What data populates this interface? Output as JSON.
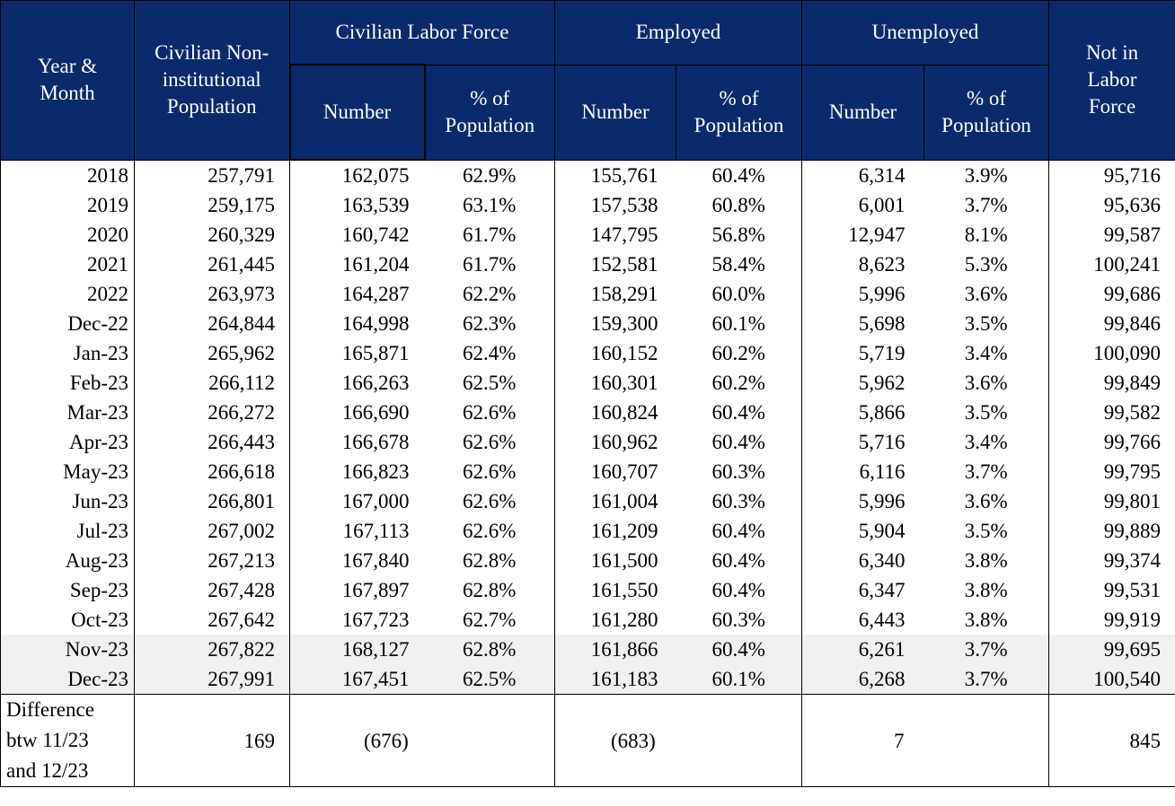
{
  "header": {
    "year_month": "Year & Month",
    "population": "Civilian Non-institutional Population",
    "groups": [
      {
        "label": "Civilian Labor Force",
        "number": "Number",
        "percent": "% of Population"
      },
      {
        "label": "Employed",
        "number": "Number",
        "percent": "% of Population"
      },
      {
        "label": "Unemployed",
        "number": "Number",
        "percent": "% of Population"
      }
    ],
    "not_in_labor_force": "Not in Labor Force"
  },
  "rows": [
    [
      "2018",
      "257,791",
      "162,075",
      "62.9%",
      "155,761",
      "60.4%",
      "6,314",
      "3.9%",
      "95,716"
    ],
    [
      "2019",
      "259,175",
      "163,539",
      "63.1%",
      "157,538",
      "60.8%",
      "6,001",
      "3.7%",
      "95,636"
    ],
    [
      "2020",
      "260,329",
      "160,742",
      "61.7%",
      "147,795",
      "56.8%",
      "12,947",
      "8.1%",
      "99,587"
    ],
    [
      "2021",
      "261,445",
      "161,204",
      "61.7%",
      "152,581",
      "58.4%",
      "8,623",
      "5.3%",
      "100,241"
    ],
    [
      "2022",
      "263,973",
      "164,287",
      "62.2%",
      "158,291",
      "60.0%",
      "5,996",
      "3.6%",
      "99,686"
    ],
    [
      "Dec-22",
      "264,844",
      "164,998",
      "62.3%",
      "159,300",
      "60.1%",
      "5,698",
      "3.5%",
      "99,846"
    ],
    [
      "Jan-23",
      "265,962",
      "165,871",
      "62.4%",
      "160,152",
      "60.2%",
      "5,719",
      "3.4%",
      "100,090"
    ],
    [
      "Feb-23",
      "266,112",
      "166,263",
      "62.5%",
      "160,301",
      "60.2%",
      "5,962",
      "3.6%",
      "99,849"
    ],
    [
      "Mar-23",
      "266,272",
      "166,690",
      "62.6%",
      "160,824",
      "60.4%",
      "5,866",
      "3.5%",
      "99,582"
    ],
    [
      "Apr-23",
      "266,443",
      "166,678",
      "62.6%",
      "160,962",
      "60.4%",
      "5,716",
      "3.4%",
      "99,766"
    ],
    [
      "May-23",
      "266,618",
      "166,823",
      "62.6%",
      "160,707",
      "60.3%",
      "6,116",
      "3.7%",
      "99,795"
    ],
    [
      "Jun-23",
      "266,801",
      "167,000",
      "62.6%",
      "161,004",
      "60.3%",
      "5,996",
      "3.6%",
      "99,801"
    ],
    [
      "Jul-23",
      "267,002",
      "167,113",
      "62.6%",
      "161,209",
      "60.4%",
      "5,904",
      "3.5%",
      "99,889"
    ],
    [
      "Aug-23",
      "267,213",
      "167,840",
      "62.8%",
      "161,500",
      "60.4%",
      "6,340",
      "3.8%",
      "99,374"
    ],
    [
      "Sep-23",
      "267,428",
      "167,897",
      "62.8%",
      "161,550",
      "60.4%",
      "6,347",
      "3.8%",
      "99,531"
    ],
    [
      "Oct-23",
      "267,642",
      "167,723",
      "62.7%",
      "161,280",
      "60.3%",
      "6,443",
      "3.8%",
      "99,919"
    ],
    [
      "Nov-23",
      "267,822",
      "168,127",
      "62.8%",
      "161,866",
      "60.4%",
      "6,261",
      "3.7%",
      "99,695"
    ],
    [
      "Dec-23",
      "267,991",
      "167,451",
      "62.5%",
      "161,183",
      "60.1%",
      "6,268",
      "3.7%",
      "100,540"
    ]
  ],
  "difference": {
    "label": "Difference btw 11/23 and 12/23",
    "values": [
      "169",
      "(676)",
      "(683)",
      "7",
      "845"
    ]
  }
}
